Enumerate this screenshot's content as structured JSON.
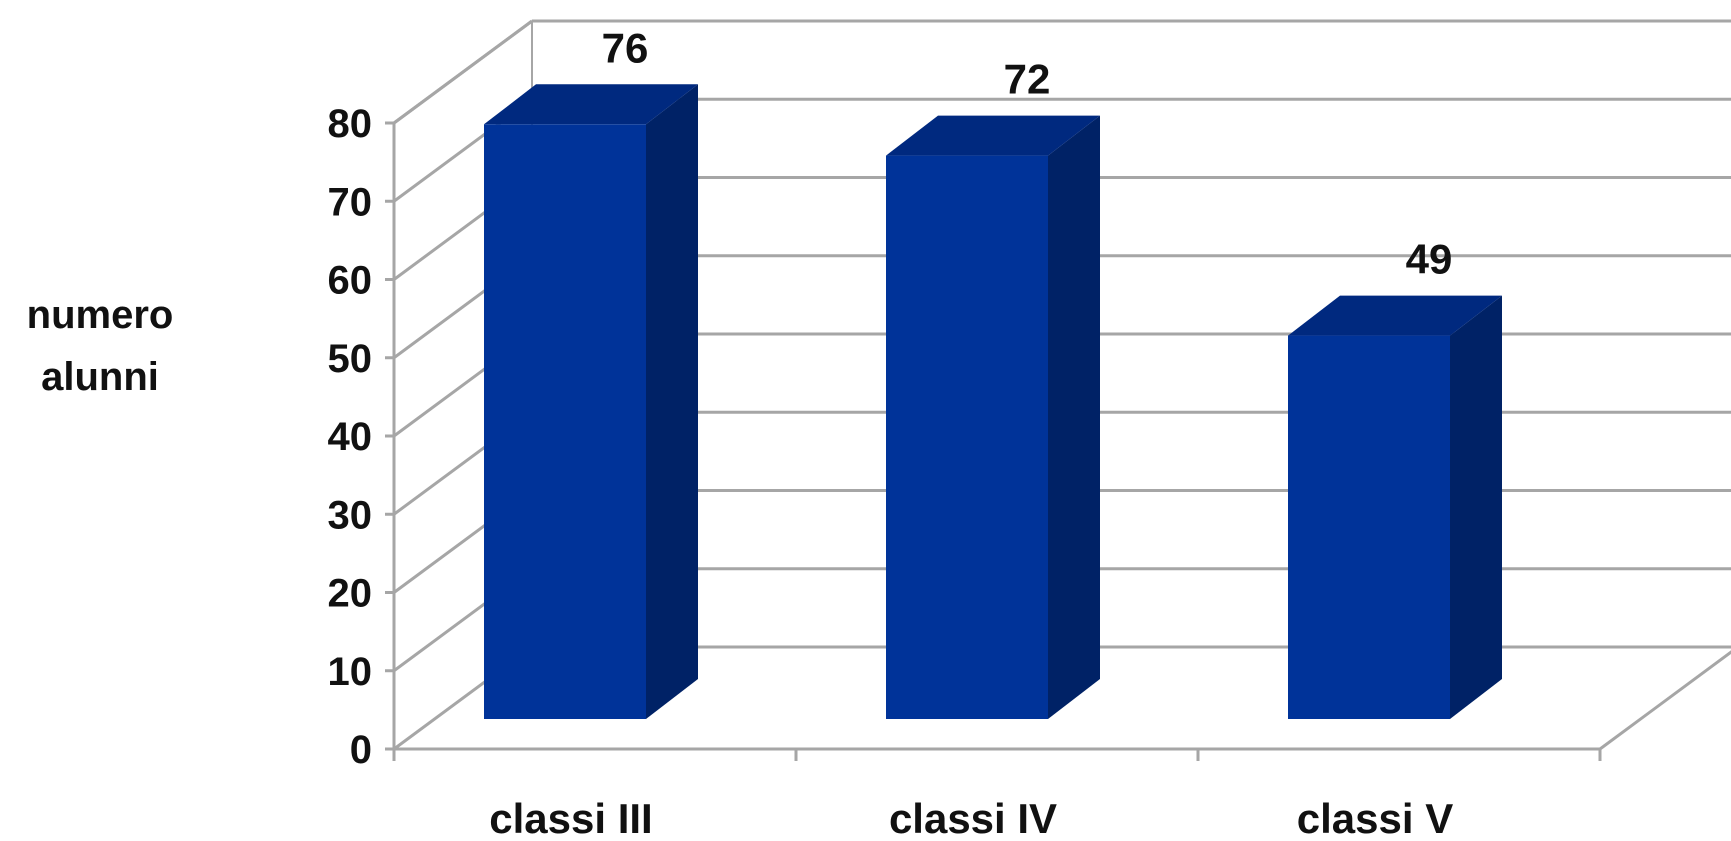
{
  "chart_data": {
    "type": "bar",
    "style": "3d-column",
    "categories": [
      "classi III",
      "classi IV",
      "classi V"
    ],
    "values": [
      76,
      72,
      49
    ],
    "value_labels": [
      "76",
      "72",
      "49"
    ],
    "title": "",
    "xlabel": "",
    "ylabel_lines": [
      "numero",
      "alunni"
    ],
    "ylim": [
      0,
      80
    ],
    "yticks": [
      0,
      10,
      20,
      30,
      40,
      50,
      60,
      70,
      80
    ],
    "grid": true,
    "legend": "none",
    "colors": {
      "bar_front": "#003399",
      "bar_side": "#002266",
      "bar_top": "#00297f",
      "grid": "#a6a6a6",
      "text": "#111111"
    }
  }
}
